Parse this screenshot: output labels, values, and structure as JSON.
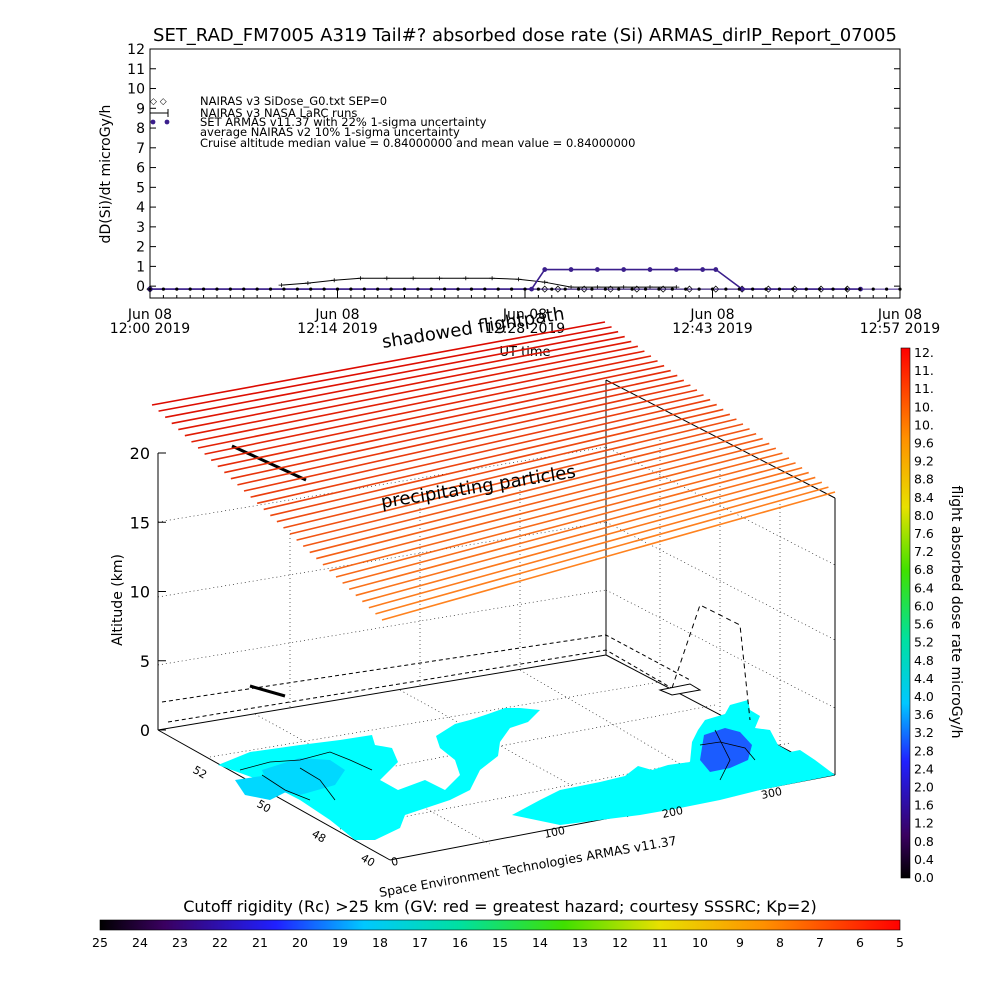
{
  "title": "SET_RAD_FM7005  A319 Tail#? absorbed dose rate (Si) ARMAS_dirIP_Report_07005",
  "colors": {
    "nairas_sidose": "#000000",
    "nairas_larc": "#000000",
    "armas": "#3b1f8c",
    "nairas_avg": "#3b1f8c",
    "land": "#00ffff",
    "flight_path": "#000000"
  },
  "top_chart": {
    "ylabel": "dD(Si)/dt microGy/h",
    "xlabel": "UT time",
    "yticks": [
      "0",
      "1",
      "2",
      "3",
      "4",
      "5",
      "6",
      "7",
      "8",
      "9",
      "10",
      "11",
      "12"
    ],
    "xticks": [
      {
        "date": "Jun 08",
        "time": "12:00 2019"
      },
      {
        "date": "Jun 08",
        "time": "12:14 2019"
      },
      {
        "date": "Jun 08",
        "time": "12:28 2019"
      },
      {
        "date": "Jun 08",
        "time": "12:43 2019"
      },
      {
        "date": "Jun 08",
        "time": "12:57 2019"
      }
    ],
    "legend": [
      "NAIRAS v3 SiDose_G0.txt SEP=0",
      "NAIRAS v3 NASA LaRC runs",
      "SET ARMAS v11.37 with 22% 1-sigma uncertainty",
      "average NAIRAS v2 10% 1-sigma uncertainty",
      "Cruise altitude median value =  0.84000000 and mean value =  0.84000000"
    ]
  },
  "chart_data": [
    {
      "type": "line",
      "title": "SET_RAD_FM7005  A319 Tail#? absorbed dose rate (Si) ARMAS_dirIP_Report_07005",
      "xlabel": "UT time",
      "ylabel": "dD(Si)/dt microGy/h",
      "ylim": [
        0,
        12
      ],
      "x_range": [
        "12:00",
        "12:57"
      ],
      "series": [
        {
          "name": "NAIRAS v3 SiDose_G0.txt SEP=0",
          "x": [
            "12:00",
            "12:30",
            "12:31",
            "12:33",
            "12:35",
            "12:37",
            "12:39",
            "12:41",
            "12:43",
            "12:45",
            "12:47",
            "12:49",
            "12:51",
            "12:53"
          ],
          "y": [
            -0.15,
            -0.15,
            -0.15,
            -0.15,
            -0.15,
            -0.15,
            -0.15,
            -0.15,
            -0.15,
            -0.15,
            -0.15,
            -0.15,
            -0.15,
            -0.15
          ]
        },
        {
          "name": "NAIRAS v3 NASA LaRC runs",
          "x": [
            "12:10",
            "12:12",
            "12:14",
            "12:16",
            "12:18",
            "12:20",
            "12:22",
            "12:24",
            "12:26",
            "12:28",
            "12:30",
            "12:32",
            "12:34",
            "12:36",
            "12:38",
            "12:40"
          ],
          "y": [
            0.05,
            0.15,
            0.3,
            0.4,
            0.4,
            0.4,
            0.4,
            0.4,
            0.4,
            0.35,
            0.2,
            -0.05,
            -0.05,
            -0.05,
            -0.05,
            -0.05
          ]
        },
        {
          "name": "SET ARMAS v11.37 with 22% 1-sigma uncertainty",
          "x": [
            "12:00",
            "12:29",
            "12:30",
            "12:32",
            "12:34",
            "12:36",
            "12:38",
            "12:40",
            "12:42",
            "12:43",
            "12:45",
            "12:54"
          ],
          "y": [
            -0.15,
            -0.15,
            0.84,
            0.84,
            0.84,
            0.84,
            0.84,
            0.84,
            0.84,
            0.84,
            -0.15,
            -0.15
          ]
        },
        {
          "name": "average NAIRAS v2 10% 1-sigma uncertainty",
          "x": [
            "12:00",
            "12:57"
          ],
          "y": [
            -0.15,
            -0.15
          ]
        }
      ]
    },
    {
      "type": "3d-surface",
      "zlabel": "Altitude (km)",
      "zticks": [
        "0",
        "5",
        "10",
        "15",
        "20"
      ],
      "lat_ticks": [
        "40",
        "48",
        "50",
        "52"
      ],
      "lon_ticks": [
        "0",
        "100",
        "200",
        "300"
      ],
      "colorbar": {
        "label": "flight absorbed dose rate microGy/h",
        "ticks": [
          "0.0",
          "0.4",
          "0.8",
          "1.2",
          "1.6",
          "2.0",
          "2.4",
          "2.8",
          "3.2",
          "3.6",
          "4.0",
          "4.4",
          "4.8",
          "5.2",
          "5.6",
          "6.0",
          "6.4",
          "6.8",
          "7.2",
          "7.6",
          "8.0",
          "8.4",
          "8.8",
          "9.2",
          "9.6",
          "10.",
          "10.",
          "11.",
          "11.",
          "12."
        ]
      },
      "rigidity_colorbar": {
        "title": "Cutoff rigidity (Rc) >25 km (GV: red = greatest hazard; courtesy SSSRC; Kp=2)",
        "ticks": [
          "25",
          "24",
          "23",
          "22",
          "21",
          "20",
          "19",
          "18",
          "17",
          "16",
          "15",
          "14",
          "13",
          "12",
          "11",
          "10",
          "9",
          "8",
          "7",
          "6",
          "5"
        ]
      },
      "annotations": [
        "shadowed flightpath",
        "precipitating particles"
      ],
      "credit": "Space Environment Technologies ARMAS v11.37"
    }
  ]
}
